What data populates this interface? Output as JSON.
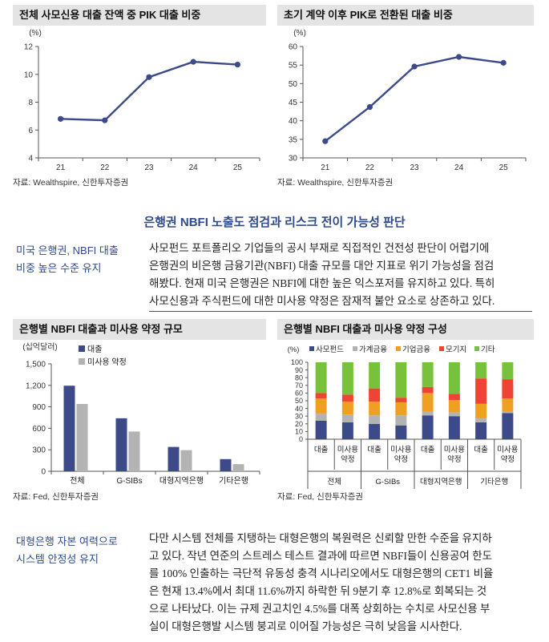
{
  "charts": [
    {
      "title": "전체 사모신용 대출 잔액 중 PIK 대출 비중",
      "source": "자료: Wealthspire, 신한투자증권",
      "chart_data": {
        "type": "line",
        "x": [
          "21",
          "22",
          "23",
          "24",
          "25"
        ],
        "values": [
          6.8,
          6.7,
          9.8,
          10.9,
          10.7
        ],
        "unit": "(%)",
        "ylim": [
          4,
          12
        ],
        "yticks": [
          "4",
          "6",
          "8",
          "10",
          "12"
        ],
        "color": "#3d4a8a",
        "grid": false
      }
    },
    {
      "title": "초기 계약 이후 PIK로 전환된 대출 비중",
      "source": "자료: Wealthspire, 신한투자증권",
      "chart_data": {
        "type": "line",
        "x": [
          "21",
          "22",
          "23",
          "24",
          "25"
        ],
        "values": [
          34.5,
          43.7,
          54.6,
          57.2,
          55.6
        ],
        "unit": "(%)",
        "ylim": [
          30,
          60
        ],
        "yticks": [
          "30",
          "35",
          "40",
          "45",
          "50",
          "55",
          "60"
        ],
        "color": "#3d4a8a",
        "grid": false
      }
    },
    {
      "title": "은행별 NBFI 대출과 미사용 약정 규모",
      "source": "자료: Fed, 신한투자증권",
      "chart_data": {
        "type": "bar",
        "unit": "(십억달러)",
        "categories": [
          "전체",
          "G-SIBs",
          "대형지역은행",
          "기타은행"
        ],
        "series": [
          {
            "name": "대출",
            "color": "#3d4a8a",
            "values": [
              1195,
              740,
              340,
              170
            ]
          },
          {
            "name": "미사용 약정",
            "color": "#b3b3b3",
            "values": [
              940,
              555,
              295,
              100
            ]
          }
        ],
        "ylim": [
          0,
          1500
        ],
        "yticks": [
          "0",
          "300",
          "600",
          "900",
          "1,200",
          "1,500"
        ],
        "legend": "top-left",
        "grid": false
      }
    },
    {
      "title": "은행별 NBFI 대출과 미사용 약정 구성",
      "source": "자료: Fed, 신한투자증권",
      "chart_data": {
        "type": "bar",
        "stacked": true,
        "unit": "(%)",
        "legend": "top",
        "groups": [
          "전체",
          "G-SIBs",
          "대형지역은행",
          "기타은행"
        ],
        "categories": [
          "대출",
          "미사용 약정",
          "대출",
          "미사용 약정",
          "대출",
          "미사용 약정",
          "대출",
          "미사용 약정"
        ],
        "category_labels": [
          [
            "대출"
          ],
          [
            "미사용",
            "약정"
          ],
          [
            "대출"
          ],
          [
            "미사용",
            "약정"
          ],
          [
            "대출"
          ],
          [
            "미사용",
            "약정"
          ],
          [
            "대출"
          ],
          [
            "미사용",
            "약정"
          ]
        ],
        "series": [
          {
            "name": "사모펀드",
            "color": "#3d4a8a",
            "values": [
              24,
              22,
              20,
              18,
              31,
              30,
              22,
              34
            ]
          },
          {
            "name": "가계금융",
            "color": "#b3b3b3",
            "values": [
              9,
              10,
              11,
              13,
              5,
              5,
              5,
              2
            ]
          },
          {
            "name": "기업금융",
            "color": "#f0a020",
            "values": [
              20,
              17,
              18,
              17,
              24,
              16,
              19,
              17
            ]
          },
          {
            "name": "모기지",
            "color": "#ee4433",
            "values": [
              7,
              9,
              17,
              6,
              8,
              8,
              33,
              25
            ]
          },
          {
            "name": "기타",
            "color": "#77c23a",
            "values": [
              40,
              42,
              34,
              46,
              32,
              41,
              21,
              22
            ]
          }
        ],
        "ylim": [
          0,
          100
        ],
        "yticks": [
          "0",
          "10",
          "20",
          "30",
          "40",
          "50",
          "60",
          "70",
          "80",
          "90",
          "100"
        ],
        "grid": false
      }
    }
  ],
  "section": {
    "title": "은행권 NBFI 노출도 점검과 리스크 전이 가능성 판단"
  },
  "text_blocks": [
    {
      "side": [
        "미국 은행권, NBFI 대출",
        "비중 높은 수준 유지"
      ],
      "lines": [
        "사모펀드 포트폴리오 기업들의 공시 부재로 직접적인 건전성 판단이 어렵기에",
        "은행권의 비은행 금융기관(NBFI) 대출 규모를 대안 지표로 위기 가능성을 점검",
        "해봤다. 현재 미국 은행권은 NBFI에 대한 높은 익스포저를 유지하고 있다. 특히",
        "사모신용과 주식펀드에 대한 미사용 약정은 잠재적 불안 요소로 상존하고 있다."
      ]
    },
    {
      "side": [
        "대형은행 자본 여력으로",
        "시스템 안정성 유지"
      ],
      "lines": [
        "다만 시스템 전체를 지탱하는 대형은행의 복원력은 신뢰할 만한 수준을 유지하",
        "고 있다. 작년 연준의 스트레스 테스트 결과에 따르면 NBFI들이 신용공여 한도",
        "를 100% 인출하는 극단적 유동성 충격 시나리오에서도 대형은행의 CET1 비율",
        "은 현재 13.4%에서 최대 11.6%까지 하락한 뒤 9분기 후 12.8%로 회복되는 것",
        "으로 나타났다. 이는 규제 권고치인 4.5%를 대폭 상회하는 수치로 사모신용 부",
        "실이 대형은행발 시스템 붕괴로 이어질 가능성은 극히 낮음을 시사한다."
      ]
    }
  ]
}
